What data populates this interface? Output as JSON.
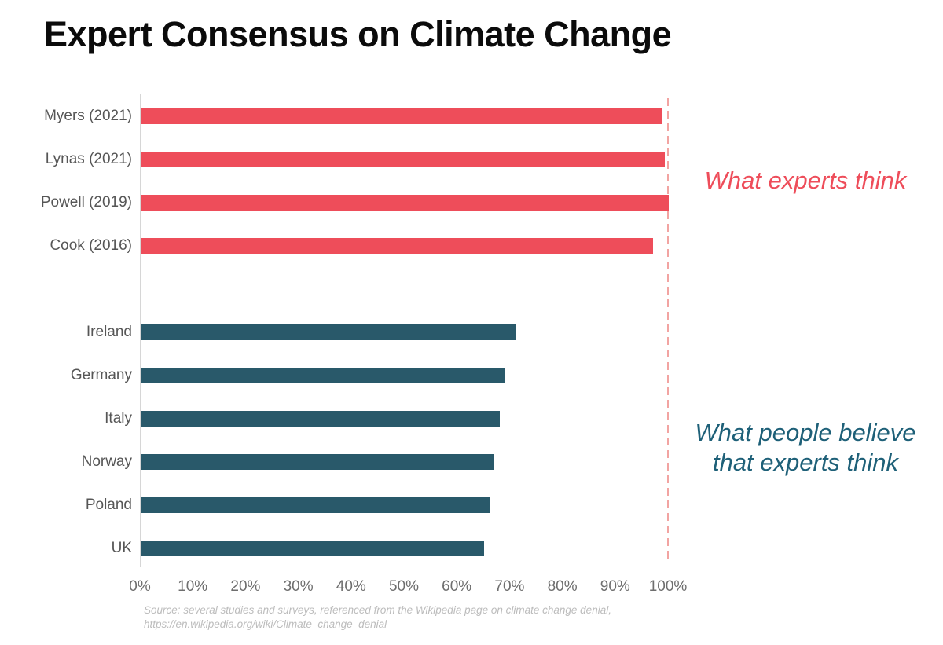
{
  "title": "Expert Consensus on Climate Change",
  "annotations": {
    "experts": "What experts think",
    "public_line1": "What people believe",
    "public_line2": "that experts think"
  },
  "source": {
    "line1": "Source: several studies and surveys, referenced from the Wikipedia page on climate change denial,",
    "line2": "https://en.wikipedia.org/wiki/Climate_change_denial"
  },
  "colors": {
    "experts_bar": "#EE4D5A",
    "public_bar": "#29596A",
    "experts_annotation": "#EE4D5A",
    "public_annotation": "#1E6078",
    "reference_line": "#F2A4A2",
    "axis_line": "#D6D6D6",
    "category_text": "#565656",
    "tick_text": "#6E6E6E",
    "source_text": "#BCBCBC",
    "title_text": "#0B0B0B"
  },
  "chart_data": {
    "type": "bar",
    "orientation": "horizontal",
    "title": "Expert Consensus on Climate Change",
    "xlabel": "",
    "ylabel": "",
    "xlim": [
      0,
      100
    ],
    "x_tick_labels": [
      "0%",
      "10%",
      "20%",
      "30%",
      "40%",
      "50%",
      "60%",
      "70%",
      "80%",
      "90%",
      "100%"
    ],
    "x_tick_values": [
      0,
      10,
      20,
      30,
      40,
      50,
      60,
      70,
      80,
      90,
      100
    ],
    "grid": false,
    "reference_line_x": 100,
    "groups": [
      {
        "name": "What experts think",
        "color_key": "experts_bar",
        "categories": [
          "Myers (2021)",
          "Lynas (2021)",
          "Powell (2019)",
          "Cook (2016)"
        ],
        "values": [
          98.7,
          99.2,
          100,
          97
        ]
      },
      {
        "name": "What people believe that experts think",
        "color_key": "public_bar",
        "categories": [
          "Ireland",
          "Germany",
          "Italy",
          "Norway",
          "Poland",
          "UK"
        ],
        "values": [
          71,
          69,
          68,
          67,
          66,
          65
        ]
      }
    ]
  }
}
